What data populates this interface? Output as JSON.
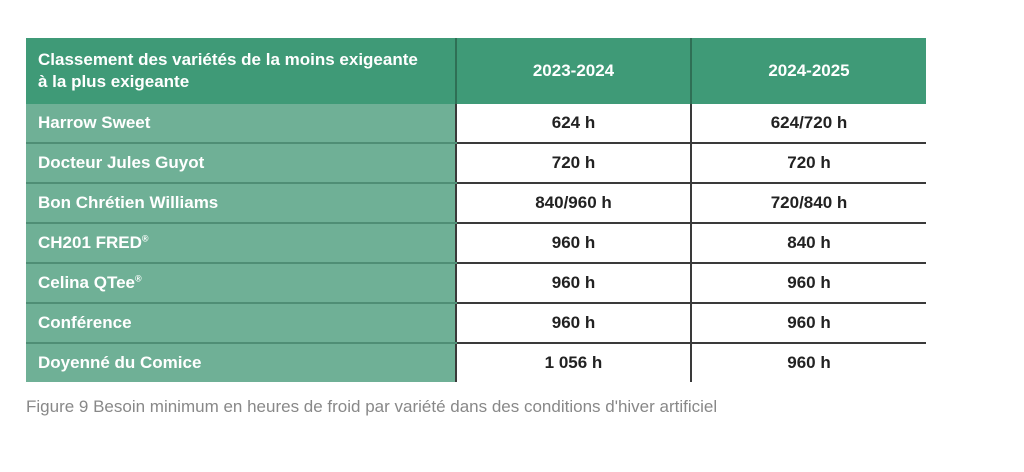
{
  "table": {
    "header": {
      "rank_line1": "Classement des variétés de la moins exigeante",
      "rank_line2": "à la plus exigeante",
      "year1": "2023-2024",
      "year2": "2024-2025"
    },
    "rows": [
      {
        "variety": "Harrow Sweet",
        "reg": "",
        "y2023": "624 h",
        "y2024": "624/720 h"
      },
      {
        "variety": "Docteur Jules Guyot",
        "reg": "",
        "y2023": "720 h",
        "y2024": "720 h"
      },
      {
        "variety": "Bon Chrétien Williams",
        "reg": "",
        "y2023": "840/960 h",
        "y2024": "720/840 h"
      },
      {
        "variety": "CH201 FRED",
        "reg": "®",
        "y2023": "960 h",
        "y2024": "840 h"
      },
      {
        "variety": "Celina QTee",
        "reg": "®",
        "y2023": "960 h",
        "y2024": "960 h"
      },
      {
        "variety": "Conférence",
        "reg": "",
        "y2023": "960 h",
        "y2024": "960 h"
      },
      {
        "variety": "Doyenné du Comice",
        "reg": "",
        "y2023": "1 056 h",
        "y2024": "960 h"
      }
    ]
  },
  "caption": "Figure 9 Besoin minimum en heures de froid par variété dans des conditions d'hiver artificiel",
  "colors": {
    "header_green": "#3f9a77",
    "row_label_green": "#6fb096",
    "caption_gray": "#888888"
  }
}
